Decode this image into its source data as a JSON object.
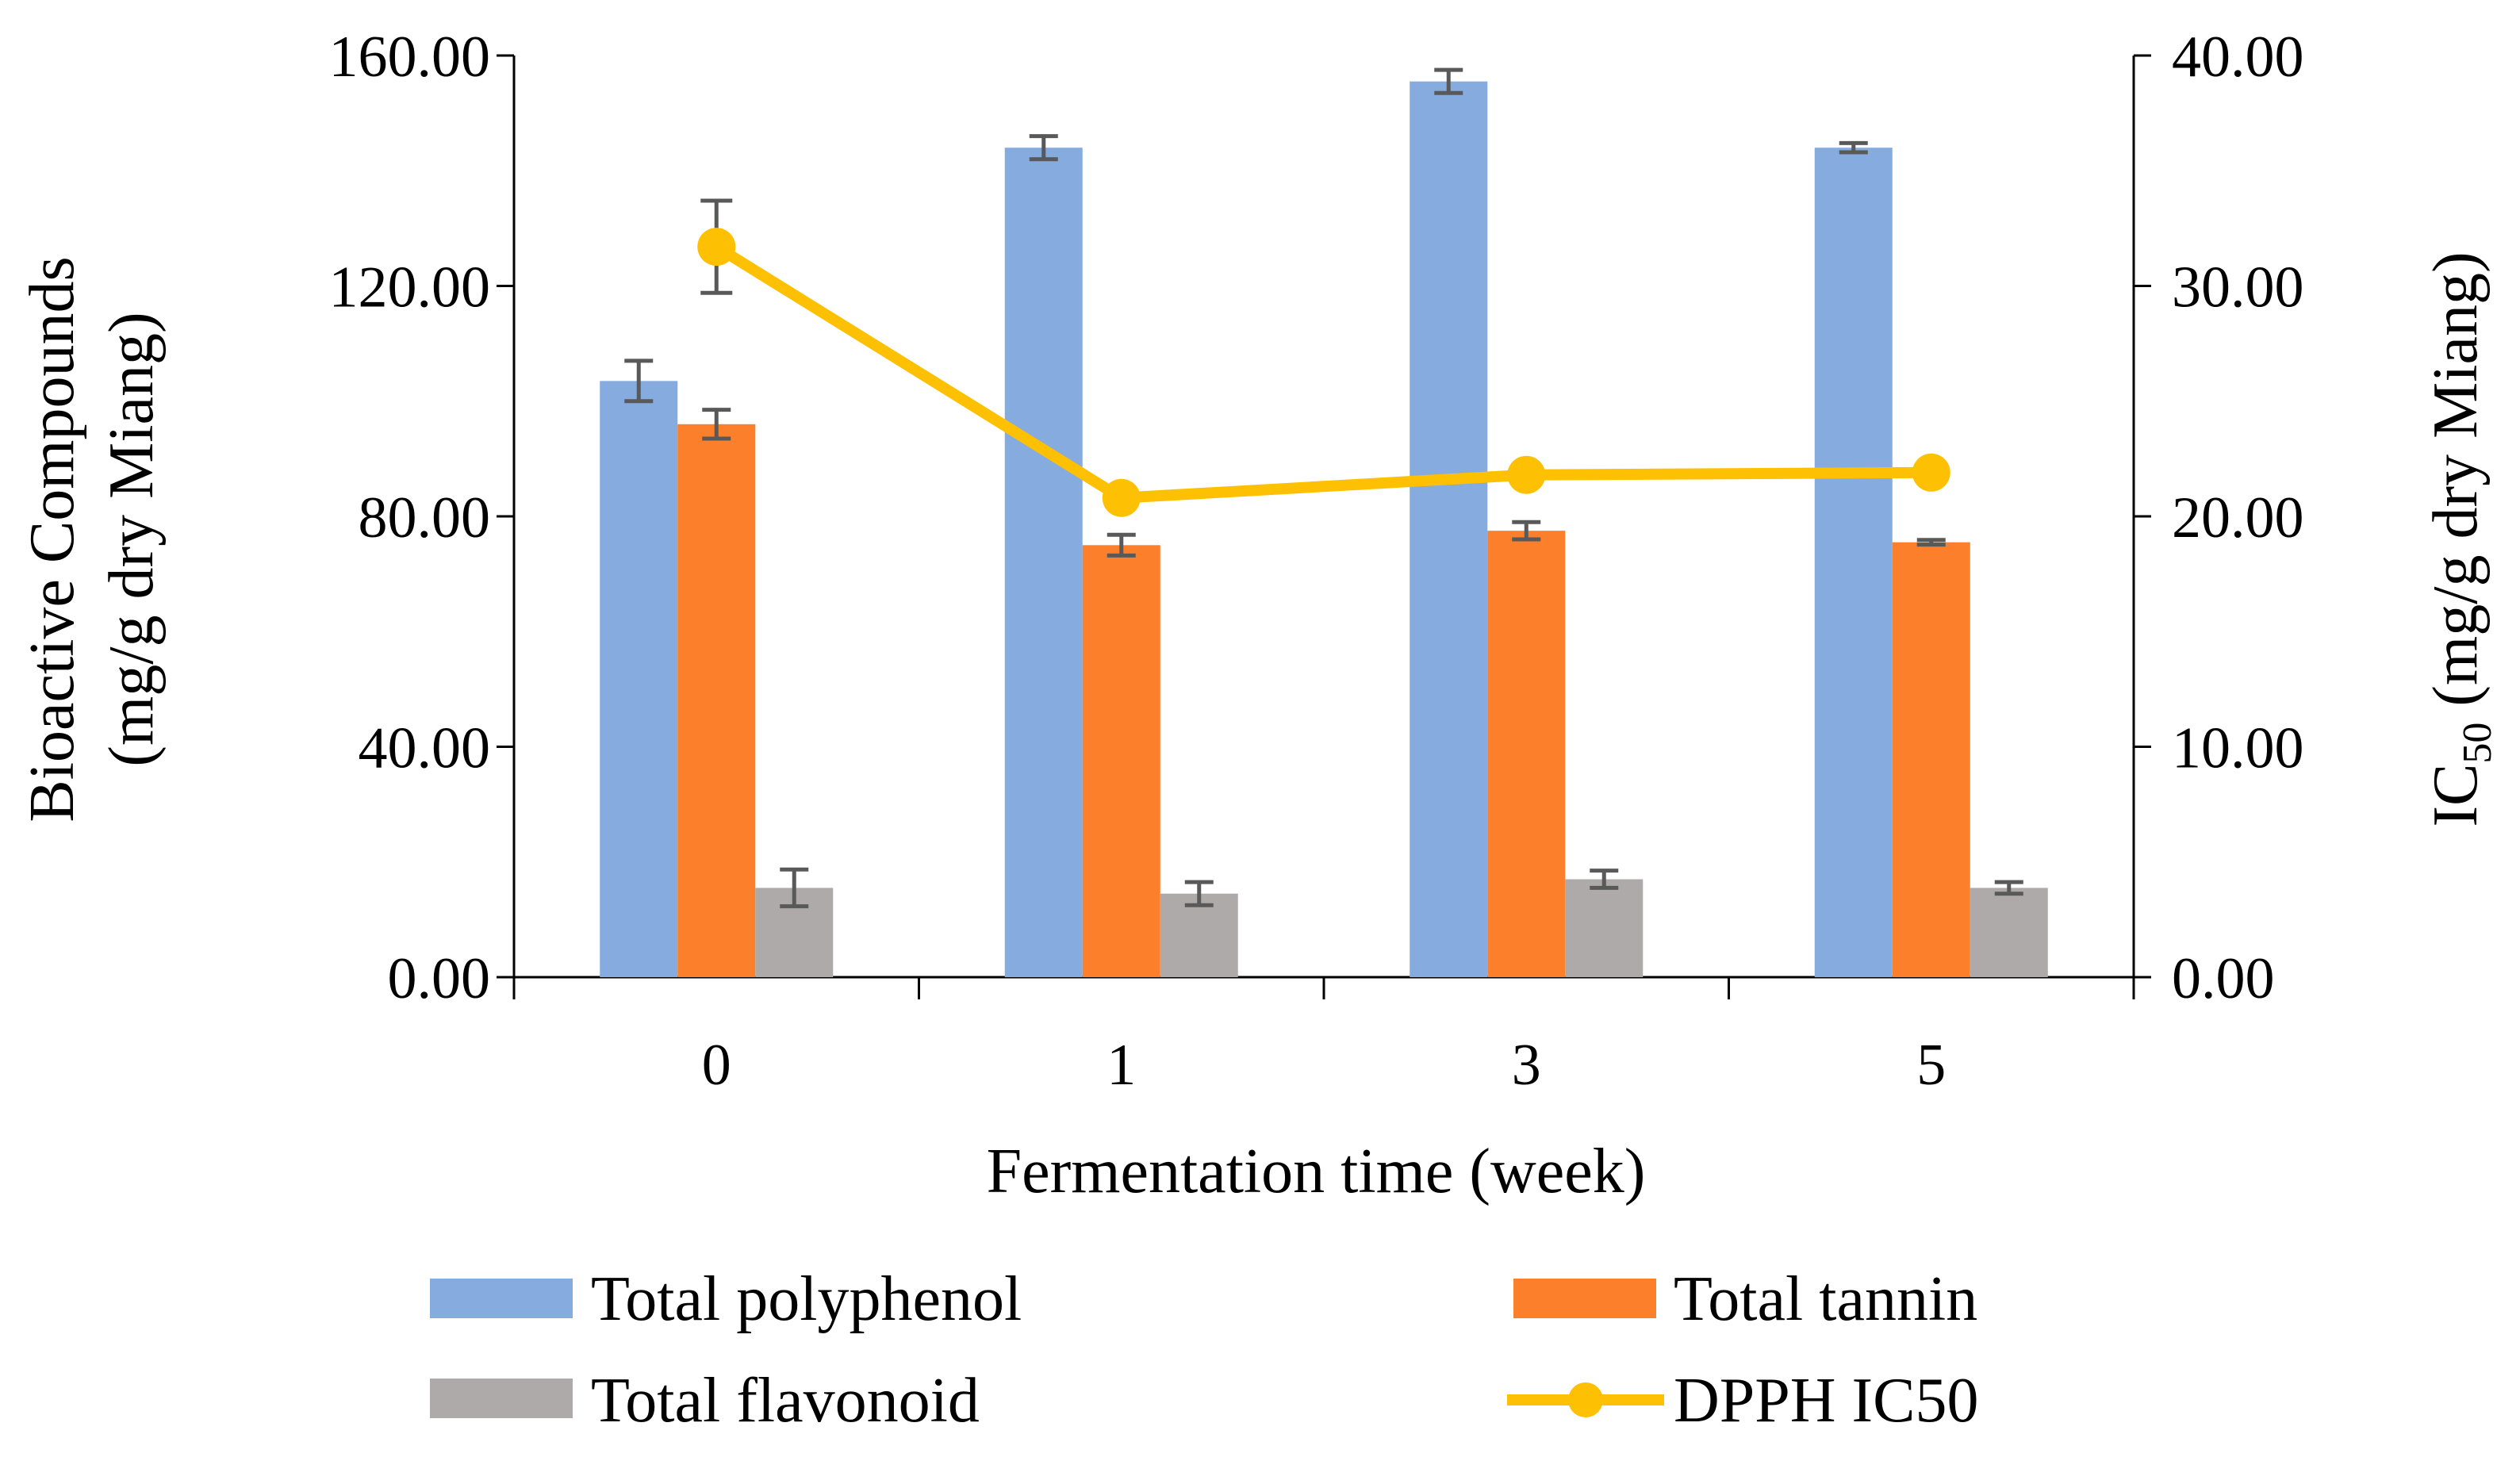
{
  "chart_data": {
    "type": "bar",
    "categories": [
      "0",
      "1",
      "3",
      "5"
    ],
    "xlabel": "Fermentation time (week)",
    "ylabel_left": [
      "Bioactive Compounds",
      "(mg/g dry Miang)"
    ],
    "ylabel_right": {
      "prefix": "IC",
      "subscript": "50",
      "suffix": " (mg/g dry Miang)"
    },
    "ylim_left": [
      0,
      160
    ],
    "ylim_right": [
      0,
      40
    ],
    "left_ticks": [
      "0.00",
      "40.00",
      "80.00",
      "120.00",
      "160.00"
    ],
    "right_ticks": [
      "0.00",
      "10.00",
      "20.00",
      "30.00",
      "40.00"
    ],
    "series": [
      {
        "name": "Total polyphenol",
        "kind": "bar",
        "axis": "left",
        "color": "#85ABDF",
        "values": [
          103.5,
          144.0,
          155.5,
          144.0
        ],
        "errors": [
          3.5,
          2.0,
          2.0,
          0.8
        ]
      },
      {
        "name": "Total tannin",
        "kind": "bar",
        "axis": "left",
        "color": "#FC7F2B",
        "values": [
          96.0,
          75.0,
          77.5,
          75.5
        ],
        "errors": [
          2.5,
          1.8,
          1.5,
          0.4
        ]
      },
      {
        "name": "Total flavonoid",
        "kind": "bar",
        "axis": "left",
        "color": "#AEAAAA",
        "values": [
          15.5,
          14.5,
          17.0,
          15.5
        ],
        "errors": [
          3.2,
          2.0,
          1.5,
          1.0
        ]
      },
      {
        "name": "DPPH IC50",
        "kind": "line",
        "axis": "right",
        "color": "#FDC003",
        "values": [
          31.7,
          20.8,
          21.8,
          21.9
        ],
        "errors": [
          2.0,
          0,
          0,
          0
        ]
      }
    ],
    "legend": [
      "Total polyphenol",
      "Total tannin",
      "Total flavonoid",
      "DPPH IC50"
    ],
    "legend_position": "bottom",
    "grid": false
  }
}
